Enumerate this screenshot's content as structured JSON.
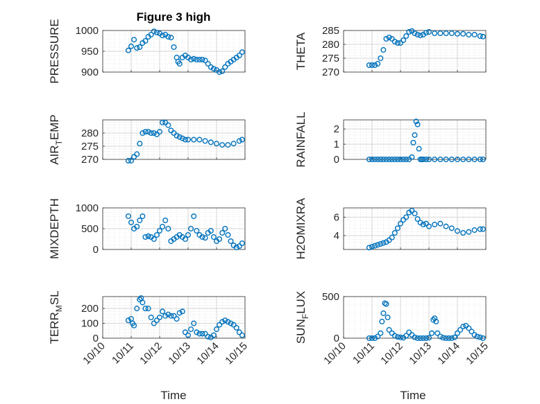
{
  "figure": {
    "title": "Figure 3 high",
    "marker_color": "#0072BD",
    "grid": true,
    "x_tick_labels": [
      "10/10",
      "10/11",
      "10/12",
      "10/13",
      "10/14",
      "10/15"
    ],
    "x_axis_label": "Time"
  },
  "chart_data": [
    {
      "type": "scatter",
      "ylabel": "PRESSURE",
      "ylim": [
        900,
        1000
      ],
      "yticks": [
        900,
        950,
        1000
      ],
      "x": [
        10.9,
        11.0,
        11.1,
        11.2,
        11.3,
        11.4,
        11.5,
        11.6,
        11.7,
        11.8,
        11.9,
        12.0,
        12.1,
        12.2,
        12.3,
        12.4,
        12.5,
        12.6,
        12.65,
        12.7,
        12.8,
        12.9,
        13.0,
        13.1,
        13.2,
        13.3,
        13.4,
        13.5,
        13.6,
        13.7,
        13.8,
        13.9,
        14.0,
        14.1,
        14.2,
        14.3,
        14.4,
        14.5,
        14.6,
        14.7,
        14.8,
        14.9
      ],
      "y": [
        952,
        962,
        978,
        958,
        960,
        970,
        975,
        985,
        990,
        998,
        995,
        993,
        988,
        990,
        985,
        983,
        960,
        935,
        925,
        920,
        935,
        940,
        935,
        930,
        932,
        930,
        930,
        930,
        928,
        920,
        912,
        908,
        905,
        900,
        902,
        912,
        920,
        925,
        930,
        935,
        940,
        948
      ]
    },
    {
      "type": "scatter",
      "ylabel": "THETA",
      "ylim": [
        270,
        285
      ],
      "yticks": [
        270,
        275,
        280,
        285
      ],
      "x": [
        10.9,
        11.0,
        11.1,
        11.2,
        11.3,
        11.4,
        11.5,
        11.6,
        11.7,
        11.8,
        11.9,
        12.0,
        12.1,
        12.2,
        12.3,
        12.4,
        12.5,
        12.6,
        12.7,
        12.8,
        12.9,
        13.0,
        13.2,
        13.4,
        13.6,
        13.8,
        14.0,
        14.2,
        14.4,
        14.6,
        14.8,
        14.9
      ],
      "y": [
        272.5,
        272.5,
        272.5,
        273,
        275,
        278,
        282,
        282.5,
        282,
        281,
        280.5,
        280.5,
        281.5,
        283,
        284.5,
        284.8,
        284,
        283.5,
        283.2,
        283.5,
        284.2,
        284.5,
        284,
        284,
        284,
        284,
        283.8,
        283.8,
        283.5,
        283.5,
        283,
        282.8
      ]
    },
    {
      "type": "scatter",
      "ylabel": "AIR_TEMP",
      "ylim": [
        270,
        285
      ],
      "yticks": [
        270,
        275,
        280
      ],
      "x": [
        10.9,
        11.0,
        11.1,
        11.2,
        11.3,
        11.4,
        11.5,
        11.6,
        11.7,
        11.8,
        11.9,
        12.0,
        12.1,
        12.2,
        12.3,
        12.4,
        12.5,
        12.6,
        12.7,
        12.8,
        12.9,
        13.0,
        13.2,
        13.4,
        13.6,
        13.8,
        14.0,
        14.2,
        14.4,
        14.6,
        14.8,
        14.9
      ],
      "y": [
        269.5,
        269.5,
        271,
        272,
        276,
        280,
        280.5,
        280.5,
        280,
        280,
        279.5,
        280.5,
        284,
        284,
        283,
        281,
        280,
        279,
        278.5,
        278,
        277.5,
        277.5,
        277.5,
        277.5,
        277,
        276.5,
        276,
        275.5,
        275.5,
        276,
        277,
        277.5
      ]
    },
    {
      "type": "scatter",
      "ylabel": "RAINFALL",
      "ylim": [
        0,
        2.6
      ],
      "yticks": [
        0,
        1,
        2
      ],
      "x": [
        10.9,
        11.0,
        11.1,
        11.2,
        11.3,
        11.4,
        11.5,
        11.6,
        11.7,
        11.8,
        11.9,
        12.0,
        12.1,
        12.2,
        12.3,
        12.4,
        12.45,
        12.5,
        12.55,
        12.6,
        12.65,
        12.7,
        12.75,
        12.8,
        12.9,
        13.0,
        13.2,
        13.4,
        13.6,
        13.8,
        14.0,
        14.2,
        14.4,
        14.6,
        14.8,
        14.9
      ],
      "y": [
        0,
        0,
        0,
        0,
        0,
        0,
        0,
        0,
        0,
        0,
        0,
        0,
        0,
        0,
        0,
        0.15,
        1.1,
        1.6,
        2.5,
        2.3,
        0.7,
        0,
        0,
        0,
        0,
        0,
        0,
        0,
        0,
        0,
        0,
        0,
        0,
        0,
        0,
        0
      ]
    },
    {
      "type": "scatter",
      "ylabel": "MIXDEPTH",
      "ylim": [
        0,
        1000
      ],
      "yticks": [
        0,
        500,
        1000
      ],
      "x": [
        10.9,
        11.0,
        11.1,
        11.2,
        11.3,
        11.4,
        11.5,
        11.6,
        11.7,
        11.8,
        11.9,
        12.0,
        12.1,
        12.2,
        12.3,
        12.4,
        12.5,
        12.6,
        12.7,
        12.8,
        12.9,
        13.0,
        13.1,
        13.2,
        13.3,
        13.4,
        13.5,
        13.6,
        13.7,
        13.8,
        13.9,
        14.0,
        14.1,
        14.2,
        14.3,
        14.4,
        14.5,
        14.6,
        14.7,
        14.8,
        14.9
      ],
      "y": [
        800,
        650,
        500,
        550,
        700,
        800,
        300,
        320,
        300,
        250,
        350,
        450,
        550,
        700,
        500,
        200,
        250,
        300,
        350,
        300,
        250,
        350,
        500,
        800,
        450,
        350,
        300,
        280,
        400,
        450,
        300,
        200,
        250,
        400,
        500,
        350,
        200,
        100,
        50,
        80,
        150
      ]
    },
    {
      "type": "scatter",
      "ylabel": "H2OMIXRA",
      "ylim": [
        2.5,
        7
      ],
      "yticks": [
        4,
        6
      ],
      "x": [
        10.9,
        11.0,
        11.1,
        11.2,
        11.3,
        11.4,
        11.5,
        11.6,
        11.7,
        11.8,
        11.9,
        12.0,
        12.1,
        12.2,
        12.3,
        12.4,
        12.5,
        12.6,
        12.7,
        12.8,
        12.9,
        13.0,
        13.2,
        13.4,
        13.6,
        13.8,
        14.0,
        14.2,
        14.4,
        14.6,
        14.8,
        14.9
      ],
      "y": [
        2.7,
        2.8,
        2.9,
        3.0,
        3.1,
        3.2,
        3.3,
        3.5,
        3.8,
        4.3,
        4.8,
        5.3,
        5.7,
        6.0,
        6.5,
        6.7,
        6.4,
        5.8,
        5.4,
        5.2,
        5.3,
        5.0,
        5.2,
        5.3,
        5.0,
        4.8,
        4.5,
        4.3,
        4.4,
        4.6,
        4.7,
        4.7
      ]
    },
    {
      "type": "scatter",
      "ylabel": "TERR_MSL",
      "ylim": [
        0,
        280
      ],
      "yticks": [
        0,
        100,
        200
      ],
      "x": [
        10.9,
        11.0,
        11.05,
        11.1,
        11.2,
        11.3,
        11.35,
        11.4,
        11.5,
        11.6,
        11.7,
        11.8,
        11.9,
        12.0,
        12.1,
        12.2,
        12.3,
        12.4,
        12.5,
        12.6,
        12.7,
        12.8,
        12.9,
        13.0,
        13.1,
        13.2,
        13.3,
        13.4,
        13.5,
        13.6,
        13.7,
        13.8,
        13.9,
        14.0,
        14.1,
        14.2,
        14.3,
        14.4,
        14.5,
        14.6,
        14.7,
        14.8,
        14.9
      ],
      "y": [
        120,
        130,
        100,
        85,
        200,
        260,
        270,
        240,
        200,
        200,
        140,
        100,
        120,
        140,
        180,
        150,
        160,
        150,
        150,
        130,
        170,
        180,
        40,
        20,
        60,
        100,
        40,
        30,
        30,
        30,
        10,
        5,
        20,
        60,
        90,
        110,
        120,
        110,
        100,
        90,
        70,
        40,
        20
      ]
    },
    {
      "type": "scatter",
      "ylabel": "SUN_FLUX",
      "ylim": [
        0,
        500
      ],
      "yticks": [
        0,
        500
      ],
      "x": [
        10.9,
        11.0,
        11.1,
        11.2,
        11.3,
        11.35,
        11.4,
        11.45,
        11.5,
        11.55,
        11.6,
        11.7,
        11.8,
        11.9,
        12.0,
        12.1,
        12.2,
        12.3,
        12.4,
        12.5,
        12.6,
        12.7,
        12.8,
        12.9,
        13.0,
        13.1,
        13.15,
        13.2,
        13.25,
        13.3,
        13.4,
        13.5,
        13.6,
        13.7,
        13.8,
        13.9,
        14.0,
        14.1,
        14.2,
        14.3,
        14.4,
        14.5,
        14.6,
        14.7,
        14.8,
        14.9
      ],
      "y": [
        0,
        0,
        0,
        20,
        60,
        200,
        300,
        420,
        410,
        250,
        100,
        60,
        30,
        15,
        10,
        5,
        30,
        70,
        40,
        10,
        0,
        0,
        0,
        0,
        5,
        60,
        220,
        240,
        200,
        60,
        20,
        5,
        0,
        0,
        0,
        10,
        60,
        100,
        140,
        150,
        120,
        80,
        40,
        20,
        10,
        0
      ]
    }
  ],
  "labels": [
    {
      "base": "PRESSURE",
      "sub": "",
      "rest": ""
    },
    {
      "base": "THETA",
      "sub": "",
      "rest": ""
    },
    {
      "base": "AIR",
      "sub": "T",
      "rest": "EMP"
    },
    {
      "base": "RAINFALL",
      "sub": "",
      "rest": ""
    },
    {
      "base": "MIXDEPTH",
      "sub": "",
      "rest": ""
    },
    {
      "base": "H2OMIXRA",
      "sub": "",
      "rest": ""
    },
    {
      "base": "TERR",
      "sub": "M",
      "rest": "SL"
    },
    {
      "base": "SUN",
      "sub": "F",
      "rest": "LUX"
    }
  ]
}
